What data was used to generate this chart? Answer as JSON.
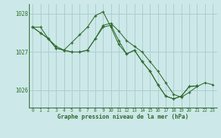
{
  "title": "Graphe pression niveau de la mer (hPa)",
  "bg_color": "#cce8e8",
  "grid_color": "#aacccc",
  "line_color": "#2d6a2d",
  "ylim": [
    1025.55,
    1028.25
  ],
  "yticks": [
    1026,
    1027,
    1028
  ],
  "ytick_labels": [
    "1026",
    "1027",
    "1028"
  ],
  "xlim": [
    -0.5,
    23.5
  ],
  "xticks": [
    0,
    1,
    2,
    3,
    4,
    5,
    6,
    7,
    8,
    9,
    10,
    11,
    12,
    13,
    14,
    15,
    16,
    17,
    18,
    19,
    20,
    21,
    22,
    23
  ],
  "series": [
    {
      "x": [
        0,
        1,
        2,
        3,
        4,
        5,
        6,
        7,
        8,
        9,
        10,
        11,
        12,
        13,
        14,
        15,
        16,
        17,
        18,
        19,
        20,
        21,
        22,
        23
      ],
      "y": [
        1027.65,
        1027.65,
        1027.35,
        1027.15,
        1027.05,
        1027.0,
        1027.0,
        1027.05,
        1027.35,
        1027.7,
        1027.75,
        1027.55,
        1027.3,
        1027.15,
        1027.0,
        1026.75,
        1026.5,
        1026.2,
        1025.9,
        1025.82,
        1025.95,
        1026.1,
        1026.2,
        1026.15
      ]
    },
    {
      "x": [
        0,
        1,
        2,
        3,
        4,
        5,
        6,
        7,
        8,
        9,
        10,
        11,
        12,
        13,
        14,
        15,
        16,
        17,
        18,
        19,
        20,
        21
      ],
      "y": [
        1027.65,
        1027.5,
        1027.35,
        1027.1,
        1027.05,
        1027.25,
        1027.45,
        1027.65,
        1027.95,
        1028.05,
        1027.65,
        1027.2,
        1026.95,
        1027.05,
        1026.75,
        1026.5,
        1026.15,
        1025.85,
        1025.78,
        1025.85,
        1026.1,
        1026.12
      ]
    },
    {
      "x": [
        0,
        1,
        2,
        3,
        4
      ],
      "y": [
        1027.65,
        1027.5,
        1027.35,
        1027.1,
        1027.05
      ]
    },
    {
      "x": [
        4,
        5,
        6,
        7,
        8,
        9,
        10,
        11,
        12,
        13,
        14,
        15,
        16,
        17,
        18,
        19,
        20,
        21
      ],
      "y": [
        1027.05,
        1027.0,
        1027.0,
        1027.05,
        1027.35,
        1027.65,
        1027.7,
        1027.3,
        1026.95,
        1027.05,
        1026.75,
        1026.5,
        1026.15,
        1025.85,
        1025.78,
        1025.85,
        1026.1,
        1026.12
      ]
    }
  ]
}
